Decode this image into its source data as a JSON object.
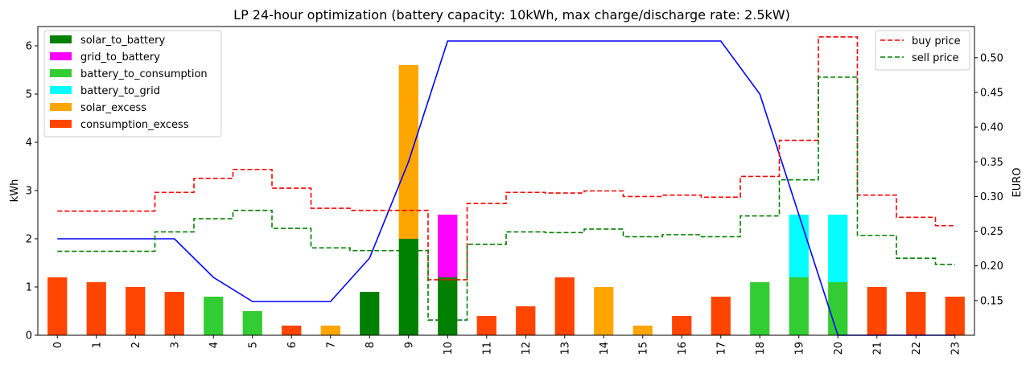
{
  "chart_data": {
    "type": "bar",
    "title": "LP 24-hour optimization (battery capacity: 10kWh, max charge/discharge rate: 2.5kW)",
    "ylabel": "kWh",
    "y2label": "EURO",
    "ylim": [
      0,
      6.4
    ],
    "y2lim": [
      0.1,
      0.545
    ],
    "yticks": [
      0,
      1,
      2,
      3,
      4,
      5,
      6
    ],
    "y2ticks": [
      0.15,
      0.2,
      0.25,
      0.3,
      0.35,
      0.4,
      0.45,
      0.5
    ],
    "y2tick_labels": [
      "0.15",
      "0.20",
      "0.25",
      "0.30",
      "0.35",
      "0.40",
      "0.45",
      "0.50"
    ],
    "categories": [
      "0",
      "1",
      "2",
      "3",
      "4",
      "5",
      "6",
      "7",
      "8",
      "9",
      "10",
      "11",
      "12",
      "13",
      "14",
      "15",
      "16",
      "17",
      "18",
      "19",
      "20",
      "21",
      "22",
      "23"
    ],
    "stacked": true,
    "legend_bars_position": "upper-left",
    "legend_lines_position": "upper-right",
    "series": [
      {
        "name": "solar_to_battery",
        "color": "#008000",
        "values": [
          0,
          0,
          0,
          0,
          0,
          0,
          0,
          0,
          0.9,
          2.0,
          1.2,
          0,
          0,
          0,
          0,
          0,
          0,
          0,
          0,
          0,
          0,
          0,
          0,
          0
        ]
      },
      {
        "name": "grid_to_battery",
        "color": "#ff00ff",
        "values": [
          0,
          0,
          0,
          0,
          0,
          0,
          0,
          0,
          0,
          0,
          1.3,
          0,
          0,
          0,
          0,
          0,
          0,
          0,
          0,
          0,
          0,
          0,
          0,
          0
        ]
      },
      {
        "name": "battery_to_consumption",
        "color": "#32cd32",
        "values": [
          0,
          0,
          0,
          0,
          0.8,
          0.5,
          0,
          0,
          0,
          0,
          0,
          0,
          0,
          0,
          0,
          0,
          0,
          0,
          1.1,
          1.2,
          1.1,
          0,
          0,
          0
        ]
      },
      {
        "name": "battery_to_grid",
        "color": "#00ffff",
        "values": [
          0,
          0,
          0,
          0,
          0,
          0,
          0,
          0,
          0,
          0,
          0,
          0,
          0,
          0,
          0,
          0,
          0,
          0,
          0,
          1.3,
          1.4,
          0,
          0,
          0
        ]
      },
      {
        "name": "solar_excess",
        "color": "#ffa500",
        "values": [
          0,
          0,
          0,
          0,
          0,
          0,
          0,
          0.2,
          0,
          3.6,
          0,
          0,
          0,
          0,
          1.0,
          0.2,
          0,
          0,
          0,
          0,
          0,
          0,
          0,
          0
        ]
      },
      {
        "name": "consumption_excess",
        "color": "#ff4500",
        "values": [
          1.2,
          1.1,
          1.0,
          0.9,
          0,
          0,
          0.2,
          0,
          0,
          0,
          0,
          0.4,
          0.6,
          1.2,
          0,
          0,
          0.4,
          0.8,
          0,
          0,
          0,
          1.0,
          0.9,
          0.8
        ]
      }
    ],
    "battery_level_line": {
      "color": "#0000ff",
      "values": [
        2.0,
        2.0,
        2.0,
        2.0,
        1.2,
        0.7,
        0.7,
        0.7,
        1.6,
        3.6,
        6.1,
        6.1,
        6.1,
        6.1,
        6.1,
        6.1,
        6.1,
        6.1,
        5.0,
        2.5,
        0,
        0,
        0,
        0
      ]
    },
    "price_lines": [
      {
        "name": "buy price",
        "color": "#ff0000",
        "values": [
          0.279,
          0.279,
          0.279,
          0.306,
          0.326,
          0.339,
          0.312,
          0.283,
          0.28,
          0.28,
          0.18,
          0.29,
          0.306,
          0.305,
          0.308,
          0.3,
          0.302,
          0.299,
          0.329,
          0.381,
          0.53,
          0.302,
          0.27,
          0.258
        ]
      },
      {
        "name": "sell price",
        "color": "#008000",
        "values": [
          0.221,
          0.221,
          0.221,
          0.249,
          0.268,
          0.28,
          0.254,
          0.226,
          0.222,
          0.222,
          0.122,
          0.231,
          0.249,
          0.248,
          0.253,
          0.242,
          0.245,
          0.242,
          0.272,
          0.324,
          0.472,
          0.244,
          0.211,
          0.202
        ]
      }
    ]
  }
}
